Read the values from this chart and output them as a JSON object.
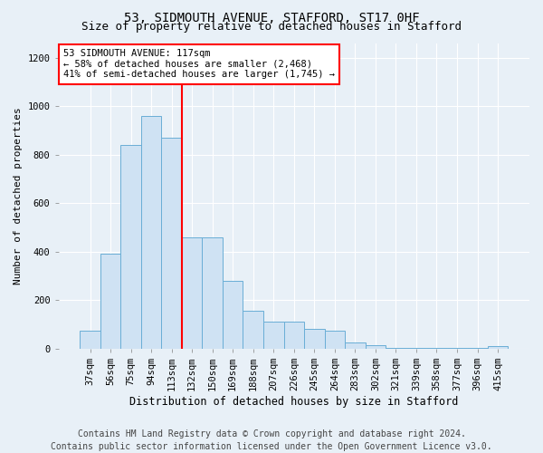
{
  "title1": "53, SIDMOUTH AVENUE, STAFFORD, ST17 0HF",
  "title2": "Size of property relative to detached houses in Stafford",
  "xlabel": "Distribution of detached houses by size in Stafford",
  "ylabel": "Number of detached properties",
  "categories": [
    "37sqm",
    "56sqm",
    "75sqm",
    "94sqm",
    "113sqm",
    "132sqm",
    "150sqm",
    "169sqm",
    "188sqm",
    "207sqm",
    "226sqm",
    "245sqm",
    "264sqm",
    "283sqm",
    "302sqm",
    "321sqm",
    "339sqm",
    "358sqm",
    "377sqm",
    "396sqm",
    "415sqm"
  ],
  "values": [
    75,
    390,
    840,
    960,
    870,
    460,
    460,
    280,
    155,
    110,
    110,
    80,
    75,
    25,
    15,
    5,
    5,
    5,
    5,
    5,
    10
  ],
  "bar_color": "#cfe2f3",
  "bar_edge_color": "#6aaed6",
  "vline_color": "red",
  "vline_index": 4,
  "annotation_text": "53 SIDMOUTH AVENUE: 117sqm\n← 58% of detached houses are smaller (2,468)\n41% of semi-detached houses are larger (1,745) →",
  "annotation_box_facecolor": "white",
  "annotation_box_edgecolor": "red",
  "footer1": "Contains HM Land Registry data © Crown copyright and database right 2024.",
  "footer2": "Contains public sector information licensed under the Open Government Licence v3.0.",
  "bg_color": "#e8f0f7",
  "plot_bg_color": "#e8f0f7",
  "ylim": [
    0,
    1260
  ],
  "yticks": [
    0,
    200,
    400,
    600,
    800,
    1000,
    1200
  ],
  "title1_fontsize": 10,
  "title2_fontsize": 9,
  "xlabel_fontsize": 8.5,
  "ylabel_fontsize": 8,
  "tick_fontsize": 7.5,
  "annot_fontsize": 7.5,
  "footer_fontsize": 7
}
